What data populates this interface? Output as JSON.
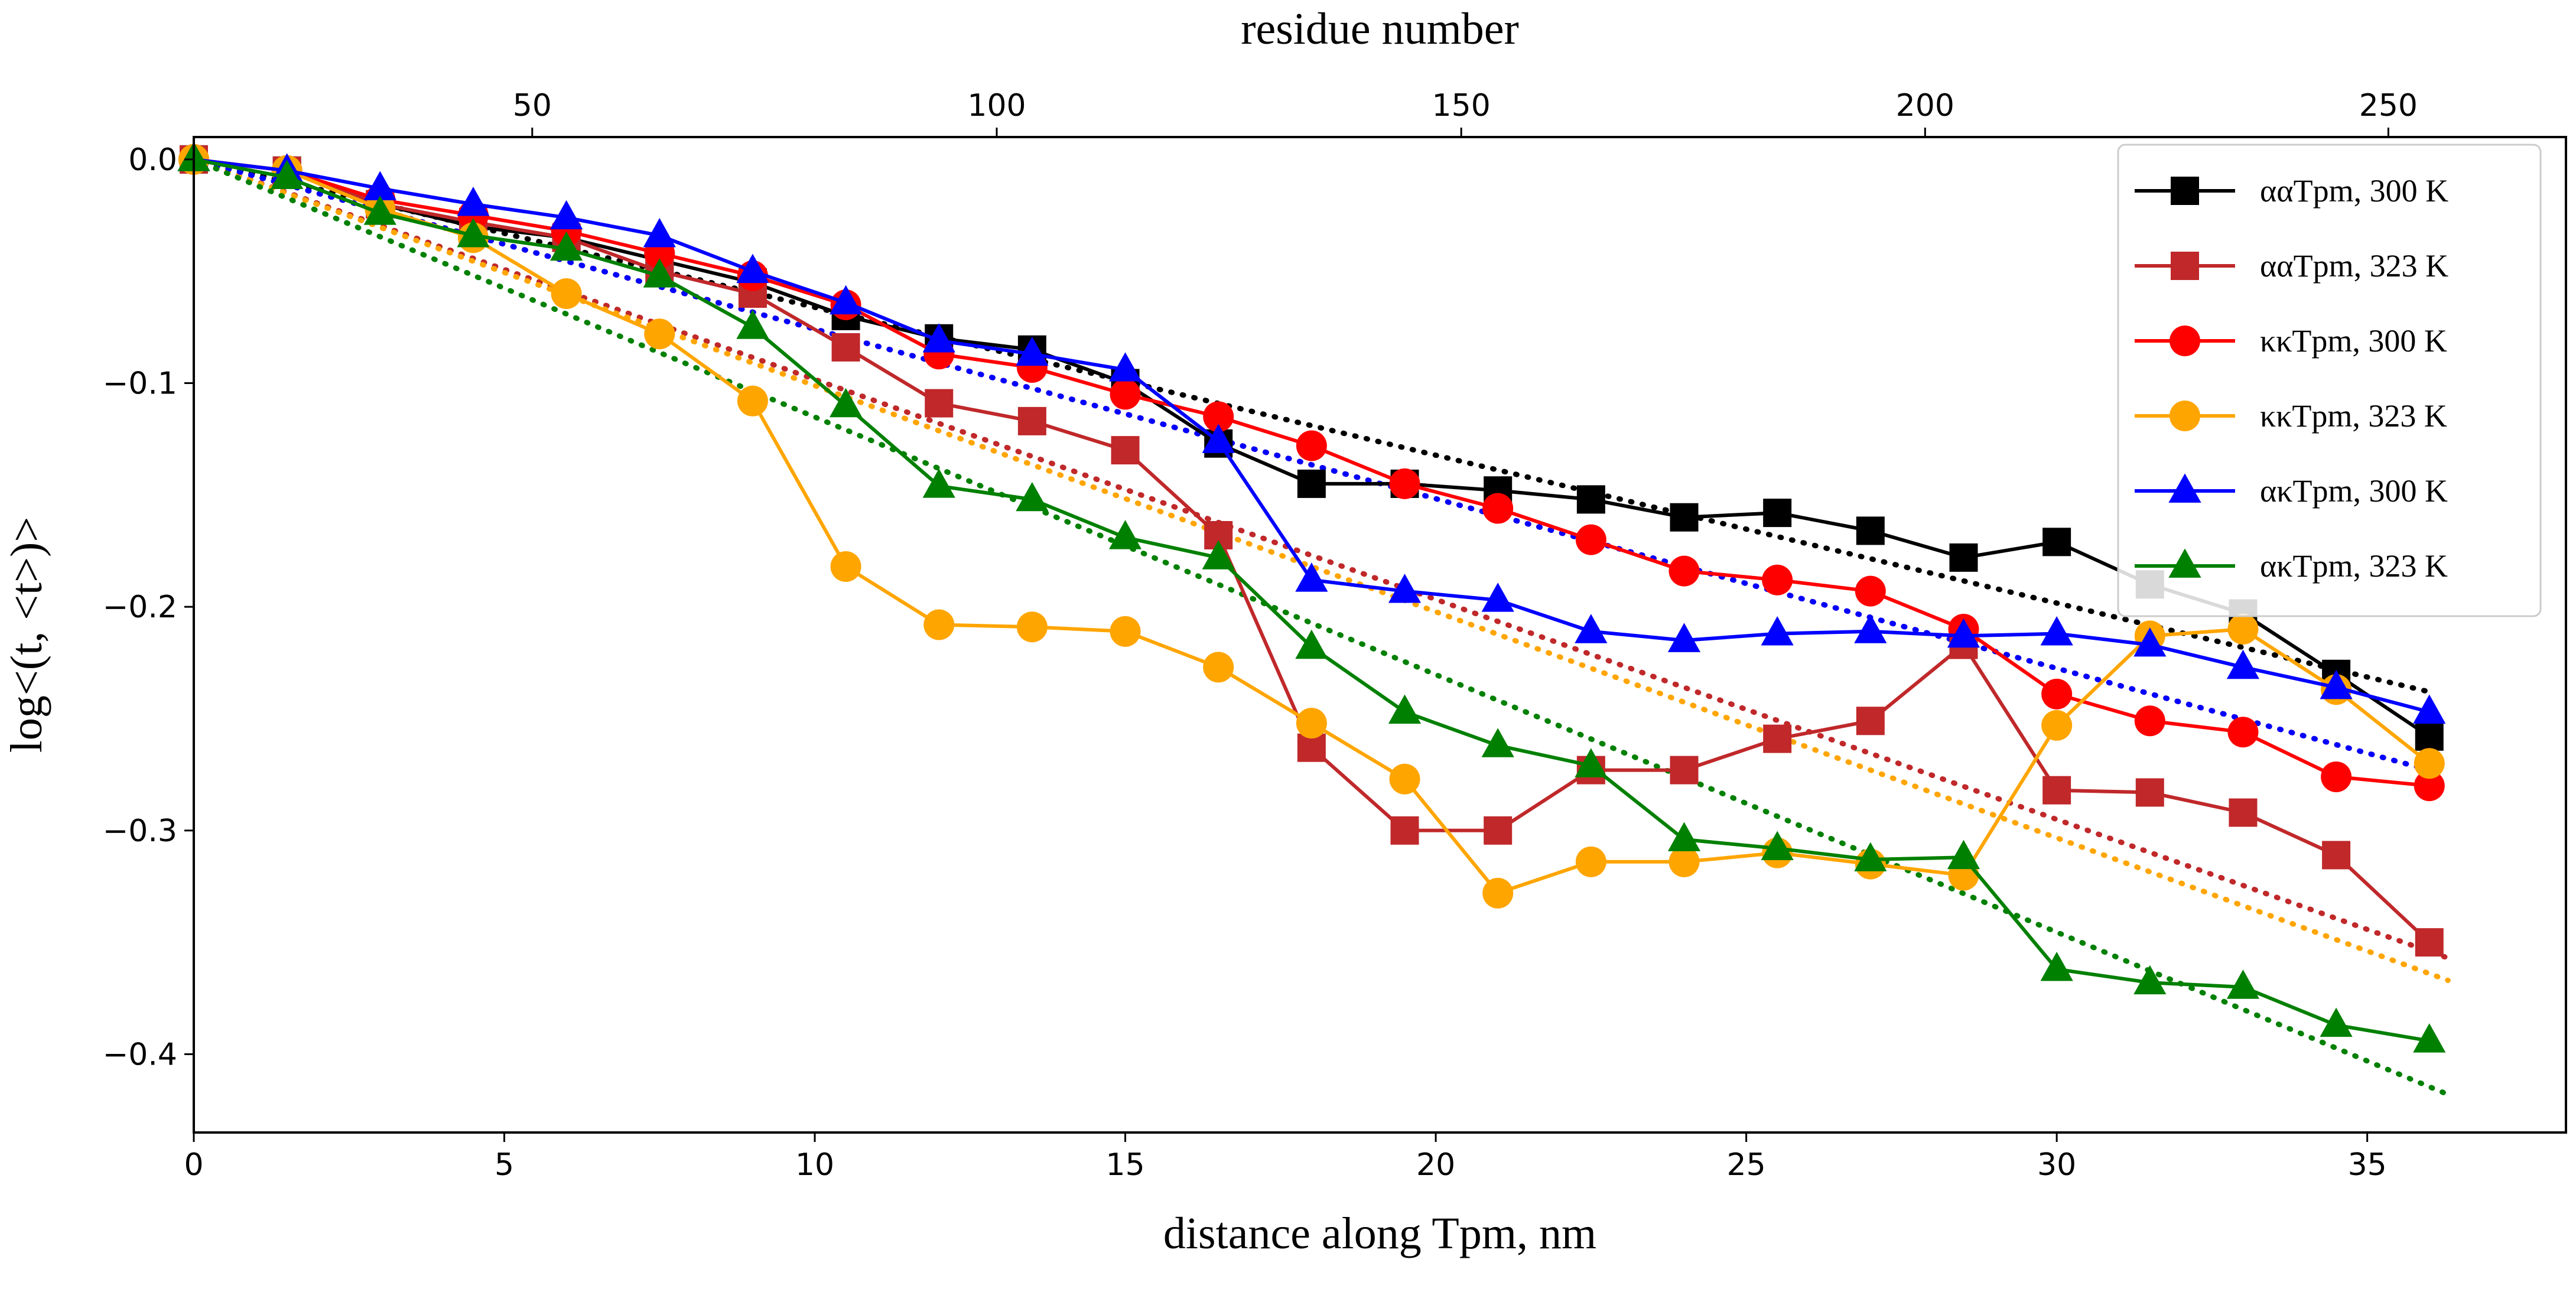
{
  "chart_data": {
    "type": "line",
    "title": "",
    "xlabel": "distance along Tpm, nm",
    "ylabel": "log<(t, <t>)>",
    "top_xlabel": "residue number",
    "xlim": [
      0,
      38.2
    ],
    "ylim": [
      -0.435,
      0.01
    ],
    "x_ticks": [
      0,
      5,
      10,
      15,
      20,
      25,
      30,
      35
    ],
    "y_ticks": [
      0.0,
      -0.1,
      -0.2,
      -0.3,
      -0.4
    ],
    "y_tick_labels": [
      "0.0",
      "−0.1",
      "−0.2",
      "−0.3",
      "−0.4"
    ],
    "top_ticks": {
      "labels": [
        "50",
        "100",
        "150",
        "200",
        "250"
      ],
      "x": [
        5.45,
        12.93,
        20.41,
        27.88,
        35.34
      ]
    },
    "legend": {
      "position": "top-right"
    },
    "series": [
      {
        "name": "ααTpm, 300 K",
        "color": "#000000",
        "marker": "square",
        "x": [
          0,
          1.5,
          3.0,
          4.5,
          6.0,
          7.5,
          9.0,
          10.5,
          12.0,
          13.5,
          15.0,
          16.5,
          18.0,
          19.5,
          21.0,
          22.5,
          24.0,
          25.5,
          27.0,
          28.5,
          30.0,
          31.5,
          33.0,
          34.5,
          36.0
        ],
        "y": [
          0,
          -0.005,
          -0.02,
          -0.03,
          -0.035,
          -0.045,
          -0.055,
          -0.07,
          -0.08,
          -0.085,
          -0.1,
          -0.127,
          -0.145,
          -0.145,
          -0.148,
          -0.152,
          -0.16,
          -0.158,
          -0.166,
          -0.178,
          -0.171,
          -0.19,
          -0.203,
          -0.23,
          -0.258
        ],
        "fit": {
          "x": [
            0,
            36
          ],
          "y": [
            0,
            -0.238
          ]
        }
      },
      {
        "name": "ααTpm, 323 K",
        "color": "#c0282a",
        "marker": "square",
        "x": [
          0,
          1.5,
          3.0,
          4.5,
          6.0,
          7.5,
          9.0,
          10.5,
          12.0,
          13.5,
          15.0,
          16.5,
          18.0,
          19.5,
          21.0,
          22.5,
          24.0,
          25.5,
          27.0,
          28.5,
          30.0,
          31.5,
          33.0,
          34.5,
          36.0
        ],
        "y": [
          0,
          -0.005,
          -0.02,
          -0.028,
          -0.035,
          -0.05,
          -0.06,
          -0.084,
          -0.109,
          -0.117,
          -0.13,
          -0.168,
          -0.263,
          -0.3,
          -0.3,
          -0.273,
          -0.273,
          -0.259,
          -0.251,
          -0.217,
          -0.282,
          -0.283,
          -0.292,
          -0.311,
          -0.35
        ],
        "fit": {
          "x": [
            0,
            36.3
          ],
          "y": [
            0,
            -0.357
          ]
        }
      },
      {
        "name": "κκTpm, 300 K",
        "color": "#ff0000",
        "marker": "circle",
        "x": [
          0,
          1.5,
          3.0,
          4.5,
          6.0,
          7.5,
          9.0,
          10.5,
          12.0,
          13.5,
          15.0,
          16.5,
          18.0,
          19.5,
          21.0,
          22.5,
          24.0,
          25.5,
          27.0,
          28.5,
          30.0,
          31.5,
          33.0,
          34.5,
          36.0
        ],
        "y": [
          0,
          -0.005,
          -0.018,
          -0.025,
          -0.032,
          -0.042,
          -0.052,
          -0.065,
          -0.087,
          -0.093,
          -0.105,
          -0.115,
          -0.128,
          -0.145,
          -0.156,
          -0.17,
          -0.184,
          -0.188,
          -0.193,
          -0.21,
          -0.239,
          -0.251,
          -0.256,
          -0.276,
          -0.28
        ],
        "fit": {
          "x": [
            0,
            36
          ],
          "y": [
            0,
            -0.273
          ]
        }
      },
      {
        "name": "κκTpm, 323 K",
        "color": "#ffa500",
        "marker": "circle",
        "x": [
          0,
          1.5,
          3.0,
          4.5,
          6.0,
          7.5,
          9.0,
          10.5,
          12.0,
          13.5,
          15.0,
          16.5,
          18.0,
          19.5,
          21.0,
          22.5,
          24.0,
          25.5,
          27.0,
          28.5,
          30.0,
          31.5,
          33.0,
          34.5,
          36.0
        ],
        "y": [
          0,
          -0.005,
          -0.022,
          -0.035,
          -0.06,
          -0.078,
          -0.108,
          -0.182,
          -0.208,
          -0.209,
          -0.211,
          -0.227,
          -0.252,
          -0.277,
          -0.328,
          -0.314,
          -0.314,
          -0.31,
          -0.315,
          -0.32,
          -0.253,
          -0.213,
          -0.21,
          -0.237,
          -0.27
        ],
        "fit": {
          "x": [
            0,
            36.3
          ],
          "y": [
            0,
            -0.367
          ]
        }
      },
      {
        "name": "ακTpm, 300 K",
        "color": "#0000ff",
        "marker": "triangle",
        "x": [
          0,
          1.5,
          3.0,
          4.5,
          6.0,
          7.5,
          9.0,
          10.5,
          12.0,
          13.5,
          15.0,
          16.5,
          18.0,
          19.5,
          21.0,
          22.5,
          24.0,
          25.5,
          27.0,
          28.5,
          30.0,
          31.5,
          33.0,
          34.5,
          36.0
        ],
        "y": [
          0,
          -0.005,
          -0.013,
          -0.02,
          -0.026,
          -0.034,
          -0.05,
          -0.064,
          -0.081,
          -0.087,
          -0.094,
          -0.126,
          -0.188,
          -0.193,
          -0.197,
          -0.211,
          -0.215,
          -0.212,
          -0.211,
          -0.213,
          -0.212,
          -0.217,
          -0.227,
          -0.236,
          -0.247
        ],
        "fit": {
          "x": [
            0,
            36
          ],
          "y": [
            0,
            -0.273
          ]
        }
      },
      {
        "name": "ακTpm, 323 K",
        "color": "#008000",
        "marker": "triangle",
        "x": [
          0,
          1.5,
          3.0,
          4.5,
          6.0,
          7.5,
          9.0,
          10.5,
          12.0,
          13.5,
          15.0,
          16.5,
          18.0,
          19.5,
          21.0,
          22.5,
          24.0,
          25.5,
          27.0,
          28.5,
          30.0,
          31.5,
          33.0,
          34.5,
          36.0
        ],
        "y": [
          0,
          -0.008,
          -0.024,
          -0.034,
          -0.04,
          -0.052,
          -0.075,
          -0.11,
          -0.146,
          -0.152,
          -0.169,
          -0.178,
          -0.218,
          -0.247,
          -0.262,
          -0.271,
          -0.304,
          -0.308,
          -0.313,
          -0.312,
          -0.362,
          -0.368,
          -0.37,
          -0.387,
          -0.394
        ],
        "fit": {
          "x": [
            0,
            36.3
          ],
          "y": [
            0,
            -0.418
          ]
        }
      }
    ]
  }
}
